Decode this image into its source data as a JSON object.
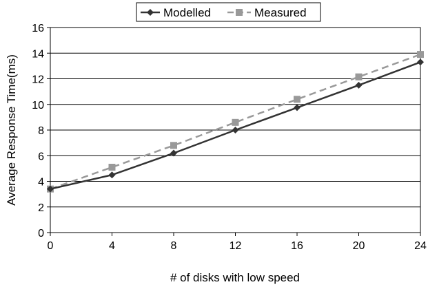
{
  "chart_data": {
    "type": "line",
    "title": "",
    "xlabel": "# of disks with low speed",
    "ylabel": "Average Response Time(ms)",
    "x": [
      0,
      4,
      8,
      12,
      16,
      20,
      24
    ],
    "xticks": [
      "0",
      "4",
      "8",
      "12",
      "16",
      "20",
      "24"
    ],
    "yticks": [
      "0",
      "2",
      "4",
      "6",
      "8",
      "10",
      "12",
      "14",
      "16"
    ],
    "xlim": [
      0,
      24
    ],
    "ylim": [
      0,
      16
    ],
    "grid": "horizontal",
    "legend_position": "top-center",
    "series": [
      {
        "name": "Modelled",
        "values": [
          3.4,
          4.5,
          6.2,
          8.0,
          9.75,
          11.5,
          13.3
        ],
        "color": "#333333",
        "marker": "diamond",
        "line": "solid"
      },
      {
        "name": "Measured",
        "values": [
          3.4,
          5.1,
          6.8,
          8.6,
          10.4,
          12.15,
          13.9
        ],
        "color": "#999999",
        "marker": "square",
        "line": "dashed"
      }
    ]
  }
}
